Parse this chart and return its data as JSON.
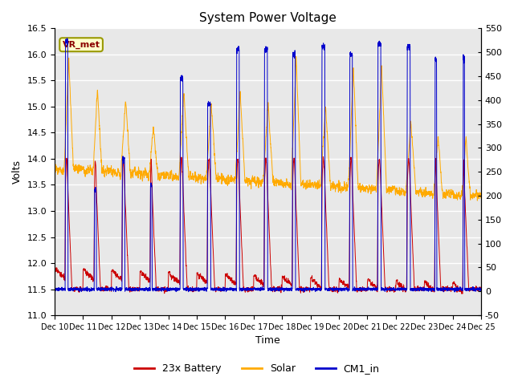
{
  "title": "System Power Voltage",
  "xlabel": "Time",
  "ylabel_left": "Volts",
  "ylim_left": [
    11.0,
    16.5
  ],
  "ylim_right": [
    -50,
    550
  ],
  "yticks_left": [
    11.0,
    11.5,
    12.0,
    12.5,
    13.0,
    13.5,
    14.0,
    14.5,
    15.0,
    15.5,
    16.0,
    16.5
  ],
  "yticks_right": [
    -50,
    0,
    50,
    100,
    150,
    200,
    250,
    300,
    350,
    400,
    450,
    500,
    550
  ],
  "xtick_labels": [
    "Dec 10",
    "Dec 11",
    "Dec 12",
    "Dec 13",
    "Dec 14",
    "Dec 15",
    "Dec 16",
    "Dec 17",
    "Dec 18",
    "Dec 19",
    "Dec 20",
    "Dec 21",
    "Dec 22",
    "Dec 23",
    "Dec 24",
    "Dec 25"
  ],
  "legend_labels": [
    "23x Battery",
    "Solar",
    "CM1_in"
  ],
  "battery_color": "#cc0000",
  "solar_color": "#ffaa00",
  "cm1_color": "#0000cc",
  "vr_met_label": "VR_met",
  "vr_met_color": "#8b0000",
  "bg_color": "#e8e8e8",
  "grid_color": "#ffffff",
  "n_days": 15,
  "pts_per_day": 288
}
